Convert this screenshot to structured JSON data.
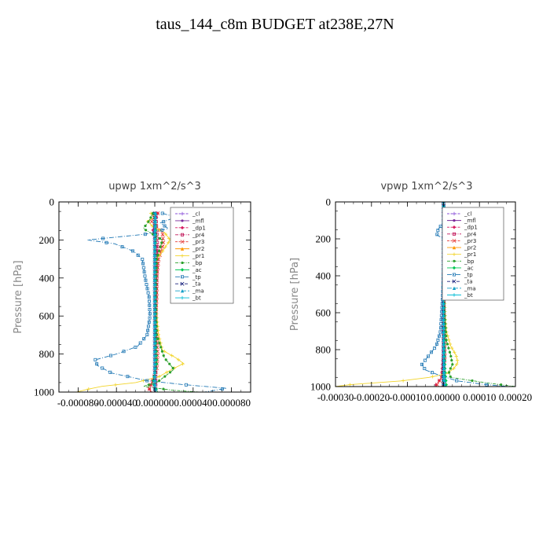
{
  "page": {
    "title": "taus_144_c8m  BUDGET at238E,27N"
  },
  "chart_data": [
    {
      "type": "line",
      "title": "upwp   1xm^2/s^3",
      "ylabel": "Pressure [hPa]",
      "xlabel": "",
      "xlim": [
        -0.0001,
        0.0001
      ],
      "ylim": [
        1000,
        0
      ],
      "xticks": [
        "-0.000080",
        "-0.000040",
        "0.000000",
        "0.000040",
        "0.000080"
      ],
      "xtick_values": [
        -8e-05,
        -4e-05,
        0,
        4e-05,
        8e-05
      ],
      "yticks": [
        0,
        200,
        400,
        600,
        800,
        1000
      ],
      "grid": false,
      "legend_position": "upper-right",
      "legend": [
        "_cl",
        "_mfl",
        "_dp1",
        "_pr4",
        "_pr3",
        "_pr2",
        "_pr1",
        "_bp",
        "_ac",
        "_tp",
        "_ta",
        "_ma",
        "_bt"
      ],
      "series": [
        {
          "name": "_cl",
          "color": "#8a4fd8",
          "p": [
            60,
            120,
            200,
            300,
            400,
            500,
            600,
            700,
            800,
            880,
            950,
            1000
          ],
          "x": [
            0,
            0,
            0,
            0,
            0,
            0,
            0,
            0,
            0,
            0,
            0,
            0
          ]
        },
        {
          "name": "_mfl",
          "color": "#7a2a9a",
          "p": [
            60,
            120,
            200,
            300,
            400,
            500,
            600,
            700,
            800,
            880,
            950,
            1000
          ],
          "x": [
            0,
            0,
            0,
            0,
            0,
            0,
            0,
            0,
            0,
            0,
            0,
            0
          ]
        },
        {
          "name": "_dp1",
          "color": "#d81b60",
          "p": [
            60,
            150,
            250,
            400,
            600,
            800,
            900,
            960,
            990,
            1000
          ],
          "x": [
            3e-06,
            -2e-06,
            2e-06,
            1e-06,
            1e-06,
            1e-06,
            1e-06,
            -4e-06,
            -6e-06,
            -3e-06
          ]
        },
        {
          "name": "_pr4",
          "color": "#c2185b",
          "p": [
            60,
            150,
            250,
            400,
            600,
            800,
            950,
            1000
          ],
          "x": [
            1e-06,
            2e-06,
            3e-06,
            2e-06,
            1e-06,
            1e-06,
            1e-06,
            1e-06
          ]
        },
        {
          "name": "_pr3",
          "color": "#e53935",
          "p": [
            60,
            100,
            160,
            220,
            300,
            400,
            500,
            600,
            700,
            800,
            880,
            940,
            980,
            1000
          ],
          "x": [
            3e-06,
            -4e-06,
            8e-06,
            9e-06,
            4e-06,
            2e-06,
            2e-06,
            1e-06,
            2e-06,
            3e-06,
            2e-06,
            -2e-06,
            -6e-06,
            -4e-06
          ]
        },
        {
          "name": "_pr2",
          "color": "#ff9800",
          "p": [
            60,
            150,
            300,
            500,
            800,
            950,
            1000
          ],
          "x": [
            0,
            1e-06,
            0,
            0,
            1e-06,
            0,
            0
          ]
        },
        {
          "name": "_pr1",
          "color": "#f2d42a",
          "p": [
            60,
            80,
            100,
            130,
            160,
            200,
            260,
            300,
            400,
            500,
            600,
            700,
            780,
            820,
            850,
            880,
            920,
            950,
            970,
            985,
            1000
          ],
          "x": [
            -4e-06,
            1e-06,
            -8e-06,
            -2e-06,
            1e-05,
            1.6e-05,
            8e-06,
            2e-06,
            1e-06,
            1e-06,
            2e-06,
            4e-06,
            8e-06,
            2.2e-05,
            3e-05,
            1.8e-05,
            4e-06,
            -2e-05,
            -5.5e-05,
            -7e-05,
            -8.2e-05
          ]
        },
        {
          "name": "_bp",
          "color": "#2ca02c",
          "p": [
            60,
            100,
            140,
            200,
            300,
            500,
            700,
            820,
            880,
            920,
            950,
            970,
            990,
            1000
          ],
          "x": [
            -2e-06,
            -6e-06,
            -1.2e-05,
            8e-06,
            2e-06,
            1e-06,
            2e-06,
            1e-05,
            2e-05,
            1e-05,
            2e-06,
            -1.2e-05,
            1.8e-05,
            4.6e-05
          ]
        },
        {
          "name": "_ac",
          "color": "#00c853",
          "p": [
            60,
            150,
            300,
            600,
            850,
            950,
            1000
          ],
          "x": [
            0,
            1e-06,
            0,
            0,
            2e-06,
            -2e-06,
            3e-06
          ]
        },
        {
          "name": "_tp",
          "color": "#1f77b4",
          "p": [
            60,
            80,
            110,
            140,
            170,
            200,
            220,
            260,
            300,
            400,
            500,
            600,
            700,
            760,
            800,
            830,
            860,
            900,
            940,
            960,
            980,
            1000
          ],
          "x": [
            8e-06,
            2.2e-05,
            6e-06,
            1.4e-05,
            -1e-05,
            -7e-05,
            -4.2e-05,
            -2.2e-05,
            -1.3e-05,
            -1e-05,
            -6e-06,
            -5e-06,
            -8e-06,
            -1.8e-05,
            -4e-05,
            -6.2e-05,
            -6e-05,
            -4.5e-05,
            -8e-06,
            2.8e-05,
            7.5e-05,
            5.2e-05
          ]
        },
        {
          "name": "_ta",
          "color": "#1a237e",
          "p": [
            60,
            200,
            400,
            600,
            800,
            950,
            1000
          ],
          "x": [
            0,
            0,
            0,
            0,
            0,
            0,
            0
          ]
        },
        {
          "name": "_ma",
          "color": "#17a0c8",
          "p": [
            60,
            200,
            400,
            600,
            800,
            950,
            1000
          ],
          "x": [
            1e-06,
            0,
            0,
            0,
            0,
            0,
            1e-06
          ]
        },
        {
          "name": "_bt",
          "color": "#00bcd4",
          "p": [
            60,
            200,
            400,
            600,
            800,
            950,
            1000
          ],
          "x": [
            0,
            0,
            0,
            0,
            0,
            0,
            0
          ]
        }
      ]
    },
    {
      "type": "line",
      "title": "vpwp   1xm^2/s^3",
      "ylabel": "Pressure [hPa]",
      "xlabel": "",
      "xlim": [
        -0.0003,
        0.0002
      ],
      "ylim": [
        1000,
        0
      ],
      "xticks": [
        "-0.00030",
        "-0.00020",
        "-0.00010",
        "0.00000",
        "0.00010",
        "0.00020"
      ],
      "xtick_values": [
        -0.0003,
        -0.0002,
        -0.0001,
        0,
        0.0001,
        0.0002
      ],
      "yticks": [
        0,
        200,
        400,
        600,
        800,
        1000
      ],
      "grid": false,
      "legend_position": "upper-right",
      "legend": [
        "_cl",
        "_mfl",
        "_dp1",
        "_pr4",
        "_pr3",
        "_pr2",
        "_pr1",
        "_bp",
        "_ac",
        "_tp",
        "_ta",
        "_ma",
        "_bt"
      ],
      "series": [
        {
          "name": "_cl",
          "color": "#8a4fd8",
          "p": [
            0,
            200,
            400,
            600,
            800,
            950,
            1000
          ],
          "x": [
            0,
            0,
            0,
            0,
            0,
            0,
            0
          ]
        },
        {
          "name": "_mfl",
          "color": "#7a2a9a",
          "p": [
            0,
            200,
            400,
            600,
            800,
            950,
            1000
          ],
          "x": [
            0,
            0,
            0,
            0,
            0,
            0,
            0
          ]
        },
        {
          "name": "_dp1",
          "color": "#d81b60",
          "p": [
            0,
            200,
            400,
            600,
            800,
            950,
            990,
            1000
          ],
          "x": [
            0,
            0,
            0,
            0,
            0,
            -5e-06,
            -2e-05,
            -2.5e-05
          ]
        },
        {
          "name": "_pr4",
          "color": "#c2185b",
          "p": [
            0,
            200,
            400,
            600,
            800,
            950,
            1000
          ],
          "x": [
            0,
            2e-06,
            1e-06,
            0,
            2e-06,
            0,
            0
          ]
        },
        {
          "name": "_pr3",
          "color": "#e53935",
          "p": [
            0,
            100,
            200,
            300,
            500,
            700,
            850,
            950,
            980,
            1000
          ],
          "x": [
            0,
            3e-06,
            6e-06,
            2e-06,
            1e-06,
            2e-06,
            4e-06,
            -5e-06,
            -1.5e-05,
            -2e-05
          ]
        },
        {
          "name": "_pr2",
          "color": "#ff9800",
          "p": [
            0,
            200,
            400,
            800,
            950,
            1000
          ],
          "x": [
            0,
            0,
            0,
            2e-06,
            0,
            0
          ]
        },
        {
          "name": "_pr1",
          "color": "#f2d42a",
          "p": [
            0,
            200,
            400,
            600,
            700,
            780,
            830,
            870,
            900,
            930,
            950,
            970,
            990,
            1000
          ],
          "x": [
            0,
            3e-06,
            2e-06,
            4e-06,
            8e-06,
            2e-05,
            3.5e-05,
            4e-05,
            3e-05,
            1e-05,
            -4e-05,
            -0.00012,
            -0.00026,
            -0.0003
          ]
        },
        {
          "name": "_bp",
          "color": "#2ca02c",
          "p": [
            0,
            200,
            400,
            600,
            750,
            830,
            880,
            920,
            950,
            980,
            1000
          ],
          "x": [
            0,
            2e-06,
            1e-06,
            3e-06,
            8e-06,
            2e-05,
            2.5e-05,
            1.5e-05,
            2e-05,
            0.00012,
            0.0002
          ]
        },
        {
          "name": "_ac",
          "color": "#00c853",
          "p": [
            0,
            200,
            600,
            900,
            1000
          ],
          "x": [
            0,
            0,
            0,
            4e-06,
            8e-06
          ]
        },
        {
          "name": "_tp",
          "color": "#1f77b4",
          "p": [
            0,
            100,
            150,
            180,
            200,
            300,
            500,
            700,
            780,
            830,
            880,
            910,
            940,
            970,
            990,
            1000
          ],
          "x": [
            0,
            4e-06,
            -1.5e-05,
            -1.8e-05,
            2e-06,
            1e-06,
            -2e-06,
            -8e-06,
            -2e-05,
            -4e-05,
            -6e-05,
            -5e-05,
            -1e-05,
            4e-05,
            0.00012,
            0.00018
          ]
        },
        {
          "name": "_ta",
          "color": "#1a237e",
          "p": [
            0,
            200,
            600,
            1000
          ],
          "x": [
            0,
            0,
            0,
            0
          ]
        },
        {
          "name": "_ma",
          "color": "#17a0c8",
          "p": [
            0,
            200,
            600,
            950,
            1000
          ],
          "x": [
            0,
            0,
            0,
            2e-06,
            4e-06
          ]
        },
        {
          "name": "_bt",
          "color": "#00bcd4",
          "p": [
            0,
            200,
            600,
            1000
          ],
          "x": [
            0,
            0,
            0,
            0
          ]
        }
      ]
    }
  ]
}
